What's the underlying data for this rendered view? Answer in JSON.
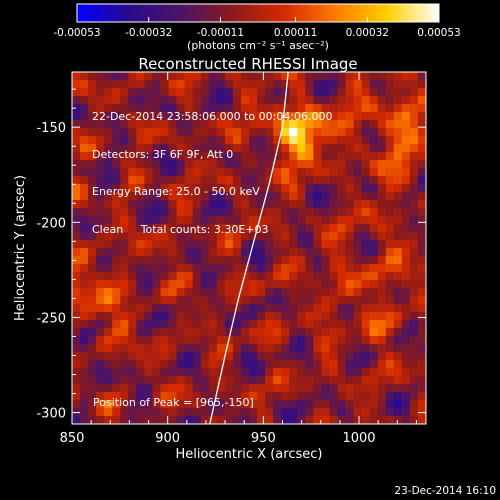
{
  "chart_data": {
    "type": "heatmap",
    "title": "Reconstructed RHESSI Image",
    "xlabel": "Heliocentric X (arcsec)",
    "ylabel": "Heliocentric Y (arcsec)",
    "xlim": [
      850,
      1035
    ],
    "ylim": [
      -306,
      -121
    ],
    "x_ticks": [
      "850",
      "900",
      "950",
      "1000"
    ],
    "y_ticks": [
      "-150",
      "-200",
      "-250",
      "-300"
    ],
    "x_tick_values": [
      850,
      900,
      950,
      1000
    ],
    "y_tick_values": [
      -150,
      -200,
      -250,
      -300
    ],
    "colorbar": {
      "range": [
        -0.00053,
        0.00053
      ],
      "ticks": [
        "-0.00053",
        "-0.00032",
        "-0.00011",
        "0.00011",
        "0.00032",
        "0.00053"
      ],
      "tick_values": [
        -0.00053,
        -0.00032,
        -0.00011,
        0.00011,
        0.00032,
        0.00053
      ],
      "units_label": "(photons cm⁻² s⁻¹ asec⁻²)",
      "colormap": [
        "#0000ff",
        "#2a0a8c",
        "#4b1466",
        "#8c1a1a",
        "#d42a00",
        "#ff7a00",
        "#ffd000",
        "#ffffff"
      ]
    },
    "annotations": [
      "22-Dec-2014 23:58:06.000 to 00:04:06.000",
      "Detectors: 3F 6F 9F, Att 0",
      "Energy Range: 25.0 - 50.0 keV",
      "Clean     Total counts: 3.30E+03"
    ],
    "peak_label": "Position of Peak = [965,-150]",
    "peak": {
      "x": 965,
      "y": -150
    },
    "limb_curve": [
      [
        963,
        -121
      ],
      [
        960,
        -150
      ],
      [
        953,
        -180
      ],
      [
        945,
        -210
      ],
      [
        937,
        -240
      ],
      [
        930,
        -270
      ],
      [
        922,
        -306
      ]
    ],
    "grid": false
  },
  "footer": {
    "timestamp": "23-Dec-2014 16:10"
  }
}
